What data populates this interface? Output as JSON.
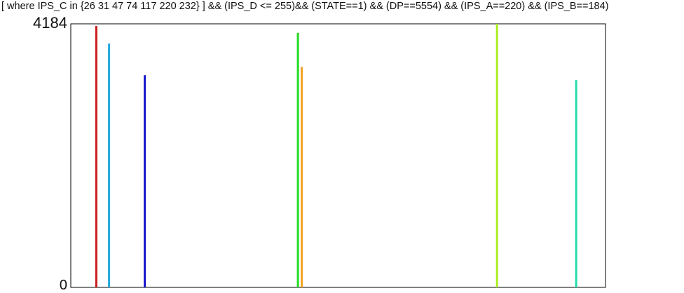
{
  "chart_data": {
    "type": "bar",
    "title": "[ where IPS_C in {26 31 47 74 117 220 232} ]  &&  (IPS_D <= 255)&& (STATE==1) && (DP==5554) && (IPS_A==220) && (IPS_B==184)",
    "xlabel": "",
    "ylabel": "",
    "ylim": [
      0,
      4184
    ],
    "xlim": [
      0,
      255
    ],
    "ytick_labels": [
      "0",
      "4184"
    ],
    "grid": false,
    "legend": "none",
    "series": [
      {
        "x": 20,
        "value": 4150,
        "color": "#cc1a1a"
      },
      {
        "x": 30,
        "value": 3870,
        "color": "#22aadd"
      },
      {
        "x": 58,
        "value": 3370,
        "color": "#1515cc"
      },
      {
        "x": 178,
        "value": 4040,
        "color": "#22dd22"
      },
      {
        "x": 181,
        "value": 3500,
        "color": "#f5a020"
      },
      {
        "x": 334,
        "value": 4184,
        "color": "#aaee22"
      },
      {
        "x": 396,
        "value": 3290,
        "color": "#22ddaa"
      }
    ]
  }
}
